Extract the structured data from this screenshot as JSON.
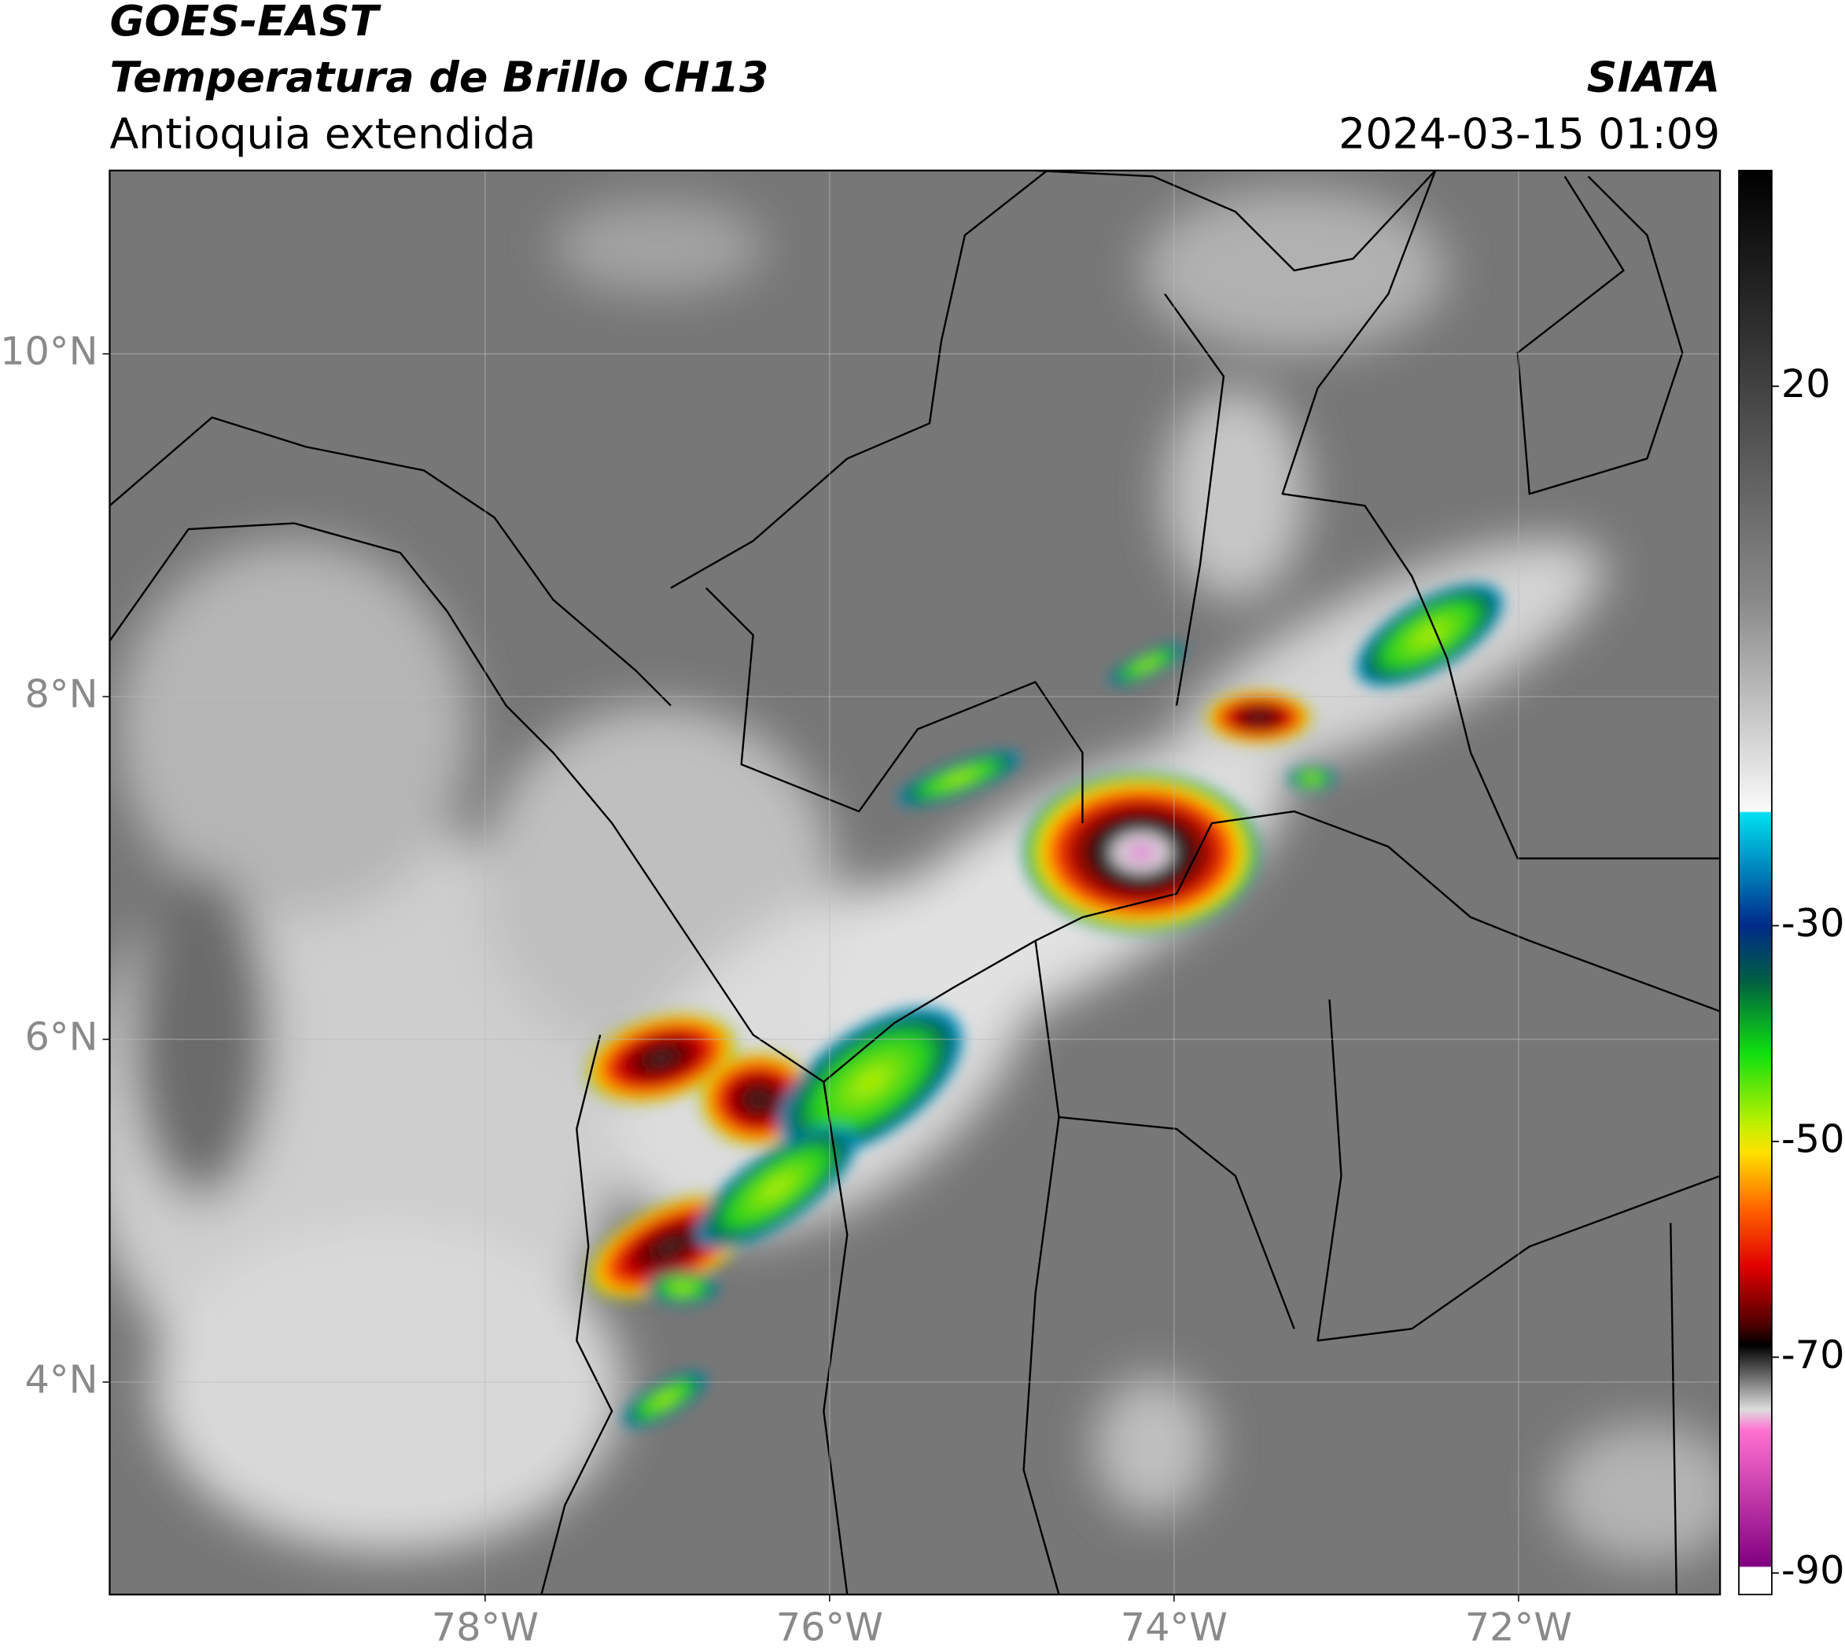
{
  "header": {
    "title": "GOES-EAST",
    "subtitle": "Temperatura de Brillo CH13",
    "region": "Antioquia extendida",
    "source": "SIATA",
    "datetime": "2024-03-15 01:09"
  },
  "map": {
    "xlim": [
      -80.18,
      -70.83
    ],
    "ylim": [
      2.76,
      11.07
    ],
    "xticks": [
      {
        "value": -78,
        "label": "78°W"
      },
      {
        "value": -76,
        "label": "76°W"
      },
      {
        "value": -74,
        "label": "74°W"
      },
      {
        "value": -72,
        "label": "72°W"
      }
    ],
    "yticks": [
      {
        "value": 4,
        "label": "4°N"
      },
      {
        "value": 6,
        "label": "6°N"
      },
      {
        "value": 8,
        "label": "8°N"
      },
      {
        "value": 10,
        "label": "10°N"
      }
    ],
    "grid": true
  },
  "colorbar": {
    "ylim": [
      -92,
      40
    ],
    "yticks": [
      -90,
      -70,
      -50,
      -30,
      20
    ]
  }
}
